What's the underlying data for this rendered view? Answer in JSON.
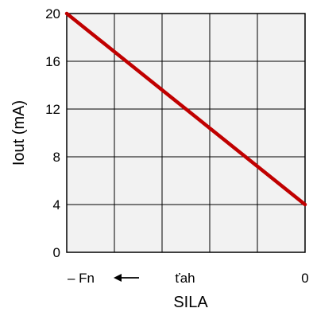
{
  "chart_data": {
    "type": "line",
    "title": "",
    "xlabel": "SILA",
    "ylabel": "Iout (mA)",
    "ylim": [
      0,
      20
    ],
    "yticks": [
      "0",
      "4",
      "8",
      "12",
      "16",
      "20"
    ],
    "xtick_labels": {
      "left": "– Fn",
      "middle": "ťah",
      "right": "0"
    },
    "direction_arrow": "left",
    "grid": true,
    "series": [
      {
        "values": [
          20,
          4
        ]
      }
    ],
    "colors": {
      "line": "#c00000",
      "grid": "#000000",
      "plot_bg": "#f2f2f2"
    }
  }
}
